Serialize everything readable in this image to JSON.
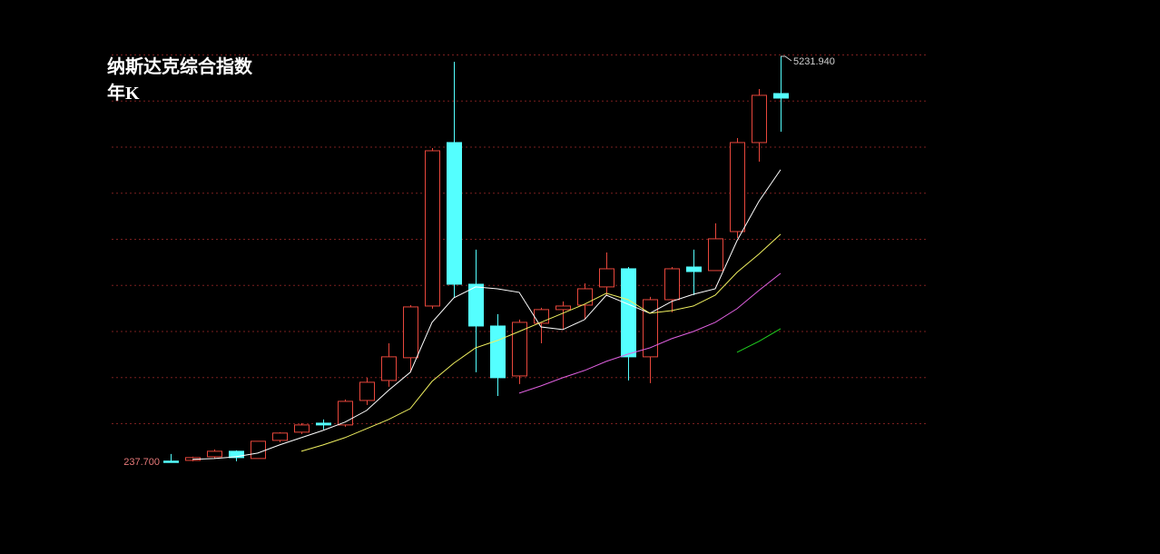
{
  "chart_data": {
    "type": "candlestick",
    "title": "纳斯达克综合指数",
    "subtitle": "年K",
    "categories": [
      null,
      null,
      null,
      null,
      null,
      null,
      null,
      null,
      null,
      null,
      null,
      null,
      null,
      null,
      null,
      null,
      null,
      null,
      null,
      null,
      null,
      null,
      null,
      null,
      null,
      null,
      null,
      null,
      null
    ],
    "open": [
      252,
      261,
      306,
      373,
      284,
      507,
      608,
      719,
      697,
      998,
      1244,
      1524,
      2160,
      4171,
      2428,
      1914,
      1300,
      1948,
      2116,
      2171,
      2395,
      2618,
      1535,
      2238,
      2640,
      2596,
      3076,
      4171,
      4774
    ],
    "high": [
      340,
      306,
      395,
      384,
      496,
      608,
      719,
      764,
      1010,
      1278,
      1702,
      2171,
      4104,
      5165,
      2853,
      2060,
      1993,
      2138,
      2216,
      2439,
      2819,
      2640,
      2272,
      2640,
      2853,
      3177,
      4227,
      4830,
      5231.94
    ],
    "low": [
      237.7,
      250,
      284,
      250,
      284,
      485,
      585,
      641,
      675,
      943,
      1166,
      1345,
      2127,
      2261,
      1345,
      1054,
      1200,
      1702,
      1870,
      1993,
      2283,
      1244,
      1211,
      2082,
      2294,
      2596,
      2998,
      3936,
      4305
    ],
    "close": [
      250,
      295,
      373,
      295,
      496,
      597,
      697,
      697,
      987,
      1222,
      1535,
      2149,
      4070,
      2428,
      1914,
      1278,
      1959,
      2116,
      2160,
      2372,
      2618,
      1535,
      2238,
      2618,
      2584,
      2987,
      4171,
      4752,
      4718
    ],
    "up_color": "#e8473c",
    "down_color": "#54ffff",
    "max_label": "5231.940",
    "min_label": "237.700",
    "lines": [
      {
        "color": "#ffffff",
        "values": [
          null,
          273,
          284,
          306,
          351,
          451,
          541,
          630,
          731,
          876,
          1121,
          1345,
          1959,
          2261,
          2395,
          2372,
          2328,
          1903,
          1870,
          1993,
          2294,
          2183,
          2071,
          2216,
          2305,
          2372,
          2964,
          3445,
          3836
        ]
      },
      {
        "color": "#f0f060",
        "values": [
          null,
          null,
          null,
          null,
          null,
          null,
          373,
          451,
          541,
          652,
          764,
          898,
          1233,
          1457,
          1646,
          1736,
          1847,
          1959,
          2071,
          2183,
          2317,
          2238,
          2071,
          2104,
          2160,
          2294,
          2574,
          2797,
          3043
        ]
      },
      {
        "color": "#e060e0",
        "values": [
          null,
          null,
          null,
          null,
          null,
          null,
          null,
          null,
          null,
          null,
          null,
          null,
          null,
          null,
          null,
          null,
          1088,
          1177,
          1278,
          1367,
          1479,
          1568,
          1646,
          1758,
          1847,
          1959,
          2127,
          2350,
          2562
        ]
      },
      {
        "color": "#20d020",
        "values": [
          null,
          null,
          null,
          null,
          null,
          null,
          null,
          null,
          null,
          null,
          null,
          null,
          null,
          null,
          null,
          null,
          null,
          null,
          null,
          null,
          null,
          null,
          null,
          null,
          null,
          null,
          1591,
          1725,
          1881
        ]
      }
    ],
    "ylim": [
      237.7,
      5231.94
    ],
    "grid": true
  }
}
